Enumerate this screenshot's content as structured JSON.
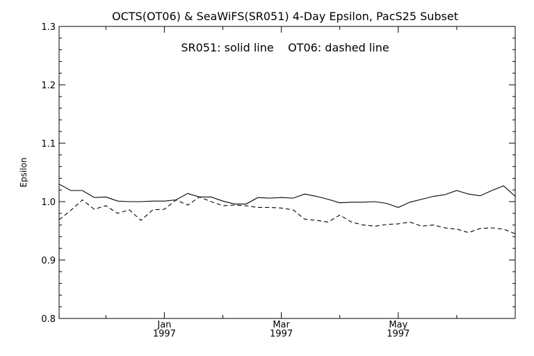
{
  "chart_data": {
    "type": "line",
    "title": "OCTS(OT06) & SeaWiFS(SR051) 4-Day Epsilon, PacS25 Subset",
    "annotation": "SR051: solid line    OT06: dashed line",
    "xlabel": "",
    "ylabel": "Epsilon",
    "ylim": [
      0.8,
      1.3
    ],
    "grid": false,
    "yticks": [
      0.8,
      0.9,
      1.0,
      1.1,
      1.2,
      1.3
    ],
    "ytick_labels": [
      "0.8",
      "0.9",
      "1.0",
      "1.1",
      "1.2",
      "1.3"
    ],
    "xticks": [
      {
        "index": 9,
        "month": "Jan",
        "year": "1997"
      },
      {
        "index": 19,
        "month": "Mar",
        "year": "1997"
      },
      {
        "index": 29,
        "month": "May",
        "year": "1997"
      }
    ],
    "x_minor_tick_indices": [
      4,
      14,
      24,
      34
    ],
    "x_index_range": [
      0,
      39
    ],
    "series": [
      {
        "name": "SR051",
        "style": "solid",
        "x": [
          0,
          1,
          2,
          3,
          4,
          5,
          6,
          7,
          8,
          9,
          10,
          11,
          12,
          13,
          14,
          15,
          16,
          17,
          18,
          19,
          20,
          21,
          22,
          23,
          24,
          25,
          26,
          27,
          28,
          29,
          30,
          31,
          32,
          33,
          34,
          35,
          36,
          37,
          38,
          39
        ],
        "values": [
          1.03,
          1.019,
          1.019,
          1.007,
          1.008,
          1.001,
          1.0,
          1.0,
          1.001,
          1.001,
          1.003,
          1.014,
          1.008,
          1.008,
          1.001,
          0.996,
          0.996,
          1.007,
          1.006,
          1.007,
          1.006,
          1.013,
          1.009,
          1.004,
          0.998,
          0.999,
          0.999,
          1.0,
          0.997,
          0.99,
          0.999,
          1.004,
          1.009,
          1.012,
          1.019,
          1.013,
          1.01,
          1.019,
          1.027,
          1.009
        ]
      },
      {
        "name": "OT06",
        "style": "dashed",
        "x": [
          0,
          1,
          2,
          3,
          4,
          5,
          6,
          7,
          8,
          9,
          10,
          11,
          12,
          13,
          14,
          15,
          16,
          17,
          18,
          19,
          20,
          21,
          22,
          23,
          24,
          25,
          26,
          27,
          28,
          29,
          30,
          31,
          32,
          33,
          34,
          35,
          36,
          37,
          38,
          39
        ],
        "values": [
          0.969,
          0.985,
          1.003,
          0.987,
          0.993,
          0.98,
          0.986,
          0.968,
          0.986,
          0.987,
          1.003,
          0.994,
          1.008,
          1.0,
          0.993,
          0.994,
          0.993,
          0.99,
          0.99,
          0.989,
          0.986,
          0.97,
          0.968,
          0.965,
          0.977,
          0.965,
          0.96,
          0.958,
          0.961,
          0.962,
          0.965,
          0.958,
          0.96,
          0.955,
          0.953,
          0.947,
          0.954,
          0.955,
          0.953,
          0.945
        ]
      }
    ]
  }
}
